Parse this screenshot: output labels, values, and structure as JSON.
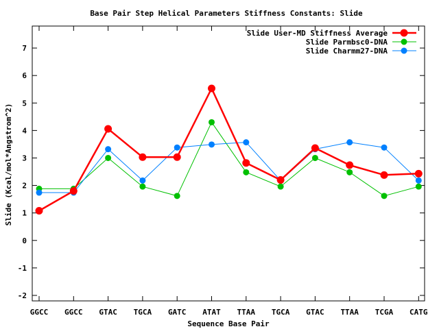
{
  "chart_data": {
    "type": "line",
    "title": "Base Pair Step Helical Parameters Stiffness Constants: Slide",
    "xlabel": "Sequence Base Pair",
    "ylabel": "Slide (Kcal/mol*Angstrom^2)",
    "ylim": [
      -2.2,
      7.8
    ],
    "yticks": [
      -2,
      -1,
      0,
      1,
      2,
      3,
      4,
      5,
      6,
      7
    ],
    "grid": false,
    "legend_position": "top-right",
    "categories": [
      "GGCC",
      "GGCC",
      "GTAC",
      "TGCA",
      "GATC",
      "ATAT",
      "TTAA",
      "TGCA",
      "GTAC",
      "TTAA",
      "TCGA",
      "CATG"
    ],
    "series": [
      {
        "name": "Slide User-MD Stiffness Average",
        "color": "#ff0000",
        "values": [
          1.08,
          1.8,
          4.06,
          3.03,
          3.03,
          5.53,
          2.82,
          2.2,
          3.36,
          2.74,
          2.38,
          2.43
        ]
      },
      {
        "name": "Slide Parmbsc0-DNA",
        "color": "#00c000",
        "values": [
          1.88,
          1.88,
          3.0,
          1.96,
          1.62,
          4.3,
          2.48,
          1.96,
          3.0,
          2.48,
          1.62,
          1.96
        ]
      },
      {
        "name": "Slide Charmm27-DNA",
        "color": "#0080ff",
        "values": [
          1.74,
          1.74,
          3.32,
          2.18,
          3.38,
          3.49,
          3.57,
          2.18,
          3.32,
          3.57,
          3.38,
          2.18
        ]
      }
    ]
  }
}
